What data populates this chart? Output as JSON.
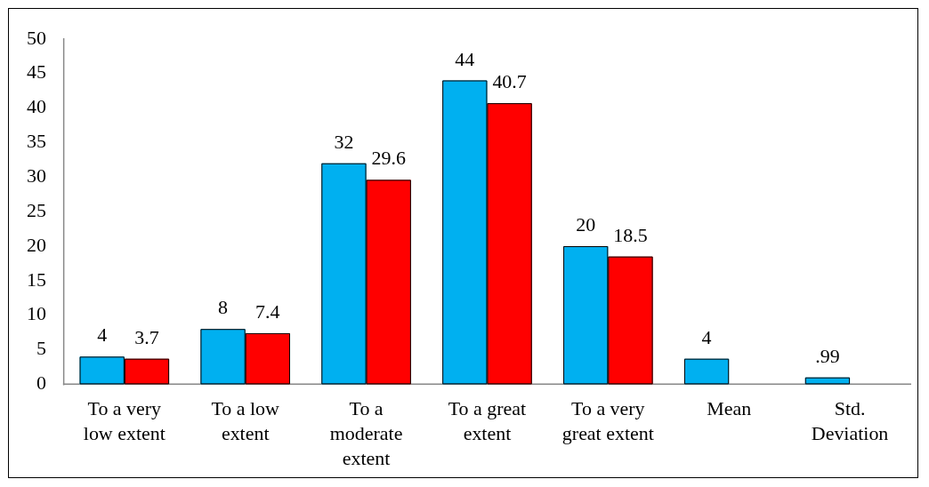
{
  "chart_data": {
    "type": "bar",
    "categories": [
      "To a very low extent",
      "To a low extent",
      "To a moderate extent",
      "To a great extent",
      "To a very great extent",
      "Mean",
      "Std. Deviation"
    ],
    "series": [
      {
        "color": "#00b0f0",
        "values": [
          4,
          8,
          32,
          44,
          20,
          3.7,
          0.99
        ],
        "value_labels": [
          "4",
          "8",
          "32",
          "44",
          "20",
          "4",
          ".99"
        ]
      },
      {
        "color": "#ff0000",
        "values": [
          3.7,
          7.4,
          29.6,
          40.7,
          18.5,
          null,
          null
        ],
        "value_labels": [
          "3.7",
          "7.4",
          "29.6",
          "40.7",
          "18.5",
          null,
          null
        ]
      }
    ],
    "ylim": [
      0,
      50
    ],
    "yticks": [
      0,
      5,
      10,
      15,
      20,
      25,
      30,
      35,
      40,
      45,
      50
    ]
  }
}
